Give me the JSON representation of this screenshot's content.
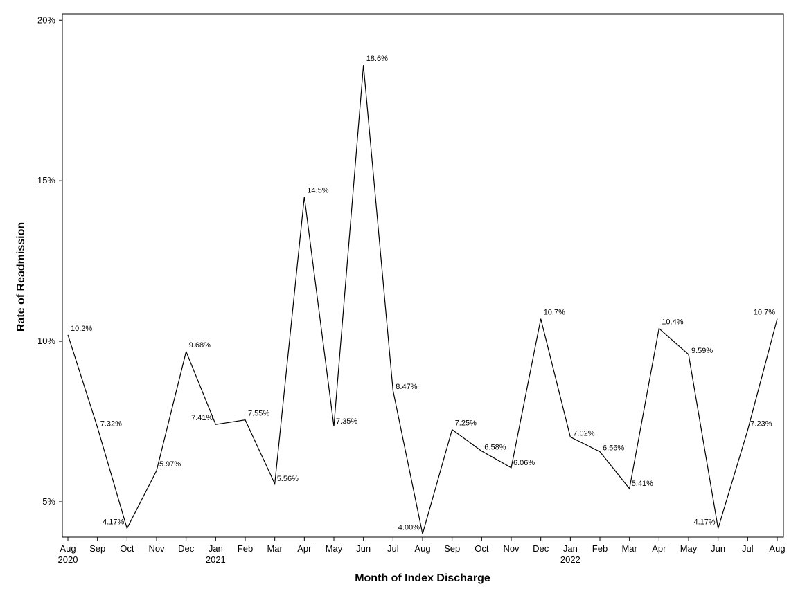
{
  "chart_data": {
    "type": "line",
    "title": "",
    "xlabel": "Month of Index Discharge",
    "ylabel": "Rate of Readmission",
    "ylim": [
      3.9,
      20.2
    ],
    "yticks": [
      5,
      10,
      15,
      20
    ],
    "ytick_labels": [
      "5%",
      "10%",
      "15%",
      "20%"
    ],
    "grid": false,
    "legend": "none",
    "line_color": "#000000",
    "x": [
      "2020-08",
      "2020-09",
      "2020-10",
      "2020-11",
      "2020-12",
      "2021-01",
      "2021-02",
      "2021-03",
      "2021-04",
      "2021-05",
      "2021-06",
      "2021-07",
      "2021-08",
      "2021-09",
      "2021-10",
      "2021-11",
      "2021-12",
      "2022-01",
      "2022-02",
      "2022-03",
      "2022-04",
      "2022-05",
      "2022-06",
      "2022-07",
      "2022-08"
    ],
    "month_labels": [
      "Aug",
      "Sep",
      "Oct",
      "Nov",
      "Dec",
      "Jan",
      "Feb",
      "Mar",
      "Apr",
      "May",
      "Jun",
      "Jul",
      "Aug",
      "Sep",
      "Oct",
      "Nov",
      "Dec",
      "Jan",
      "Feb",
      "Mar",
      "Apr",
      "May",
      "Jun",
      "Jul",
      "Aug"
    ],
    "year_labels": [
      {
        "index": 0,
        "label": "2020"
      },
      {
        "index": 5,
        "label": "2021"
      },
      {
        "index": 17,
        "label": "2022"
      }
    ],
    "series": [
      {
        "values": [
          10.2,
          7.32,
          4.17,
          5.97,
          9.68,
          7.41,
          7.55,
          5.56,
          14.5,
          7.35,
          18.6,
          8.47,
          4.0,
          7.25,
          6.58,
          6.06,
          10.7,
          7.02,
          6.56,
          5.41,
          10.4,
          9.59,
          4.17,
          7.23,
          10.7
        ],
        "labels": [
          "10.2%",
          "7.32%",
          "4.17%",
          "5.97%",
          "9.68%",
          "7.41%",
          "7.55%",
          "5.56%",
          "14.5%",
          "7.35%",
          "18.6%",
          "8.47%",
          "4.00%",
          "7.25%",
          "6.58%",
          "6.06%",
          "10.7%",
          "7.02%",
          "6.56%",
          "5.41%",
          "10.4%",
          "9.59%",
          "4.17%",
          "7.23%",
          "10.7%"
        ]
      }
    ]
  }
}
